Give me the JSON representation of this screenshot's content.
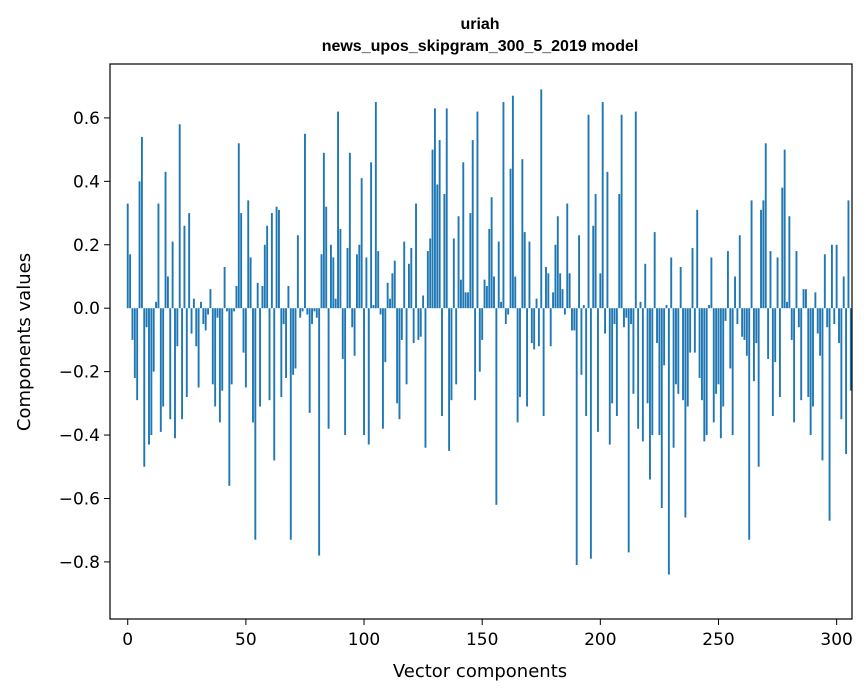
{
  "chart_data": {
    "type": "bar",
    "title": "uriah",
    "subtitle": "news_upos_skipgram_300_5_2019 model",
    "xlabel": "Vector components",
    "ylabel": "Components values",
    "xlim": [
      -7.5,
      306.5
    ],
    "ylim": [
      -0.98,
      0.77
    ],
    "x_ticks": [
      0,
      50,
      100,
      150,
      200,
      250,
      300
    ],
    "x_tick_labels": [
      "0",
      "50",
      "100",
      "150",
      "200",
      "250",
      "300"
    ],
    "y_ticks": [
      -0.8,
      -0.6,
      -0.4,
      -0.2,
      0.0,
      0.2,
      0.4,
      0.6
    ],
    "y_tick_labels": [
      "−0.8",
      "−0.6",
      "−0.4",
      "−0.2",
      "0.0",
      "0.2",
      "0.4",
      "0.6"
    ],
    "bar_color": "#1f77b4",
    "grid": false,
    "values": [
      0.33,
      0.17,
      -0.1,
      -0.22,
      -0.29,
      0.4,
      0.54,
      -0.5,
      -0.06,
      -0.43,
      -0.4,
      -0.2,
      0.02,
      0.33,
      -0.39,
      -0.31,
      0.43,
      0.1,
      -0.35,
      0.21,
      -0.41,
      -0.12,
      0.58,
      -0.35,
      0.26,
      -0.28,
      0.3,
      -0.08,
      0.03,
      -0.12,
      -0.25,
      0.02,
      -0.05,
      -0.07,
      -0.02,
      0.06,
      -0.24,
      -0.31,
      -0.03,
      -0.36,
      -0.26,
      0.13,
      -0.01,
      -0.56,
      -0.24,
      -0.01,
      0.07,
      0.52,
      0.3,
      -0.14,
      -0.25,
      0.34,
      0.16,
      -0.36,
      -0.73,
      0.08,
      -0.31,
      0.07,
      0.2,
      0.26,
      -0.29,
      0.3,
      -0.48,
      0.32,
      0.31,
      -0.28,
      -0.05,
      -0.22,
      0.07,
      -0.73,
      -0.21,
      -0.19,
      0.23,
      -0.03,
      -0.01,
      0.55,
      -0.02,
      -0.33,
      -0.05,
      -0.01,
      -0.03,
      -0.78,
      0.17,
      0.49,
      0.32,
      -0.38,
      0.2,
      0.16,
      0.03,
      0.62,
      0.25,
      -0.16,
      -0.4,
      0.19,
      0.49,
      -0.06,
      -0.15,
      0.17,
      0.2,
      0.41,
      -0.4,
      0.16,
      -0.43,
      0.46,
      0.01,
      0.65,
      0.18,
      -0.02,
      -0.38,
      -0.17,
      0.08,
      0.03,
      0.11,
      0.15,
      -0.3,
      -0.35,
      -0.1,
      0.21,
      -0.24,
      0.14,
      0.19,
      -0.11,
      0.33,
      -0.1,
      -0.09,
      0.04,
      -0.44,
      0.18,
      0.22,
      0.5,
      0.63,
      0.39,
      0.53,
      -0.34,
      0.36,
      0.63,
      -0.45,
      -0.29,
      0.22,
      -0.24,
      0.29,
      0.09,
      0.46,
      0.05,
      0.05,
      0.3,
      0.53,
      -0.29,
      0.62,
      -0.2,
      -0.1,
      0.09,
      0.07,
      0.25,
      0.35,
      0.1,
      -0.62,
      0.21,
      0.02,
      0.65,
      -0.05,
      -0.02,
      0.44,
      0.67,
      0.1,
      -0.36,
      -0.28,
      0.47,
      0.24,
      -0.31,
      0.21,
      -0.11,
      -0.13,
      0.03,
      -0.12,
      0.69,
      -0.34,
      0.13,
      0.11,
      -0.12,
      0.05,
      0.2,
      0.29,
      0.11,
      0.06,
      -0.02,
      0.33,
      0.11,
      -0.07,
      -0.07,
      -0.81,
      0.23,
      -0.21,
      0.01,
      -0.34,
      0.61,
      -0.79,
      0.26,
      0.36,
      -0.39,
      0.11,
      0.65,
      -0.08,
      0.43,
      -0.43,
      -0.3,
      -0.05,
      -0.34,
      0.36,
      0.61,
      -0.06,
      -0.03,
      -0.77,
      -0.05,
      -0.27,
      0.62,
      -0.38,
      0.02,
      -0.42,
      0.14,
      -0.3,
      -0.54,
      -0.4,
      0.24,
      -0.11,
      -0.4,
      -0.63,
      -0.18,
      0.01,
      -0.84,
      0.16,
      -0.44,
      -0.24,
      -0.27,
      0.13,
      -0.29,
      -0.66,
      -0.31,
      -0.14,
      0.19,
      -0.14,
      0.31,
      -0.22,
      -0.29,
      -0.42,
      -0.4,
      0.01,
      0.16,
      -0.36,
      -0.27,
      -0.24,
      -0.41,
      -0.31,
      -0.04,
      0.18,
      -0.19,
      -0.4,
      0.1,
      -0.05,
      0.23,
      -0.09,
      -0.1,
      -0.15,
      -0.73,
      0.34,
      -0.23,
      -0.11,
      -0.5,
      0.31,
      0.34,
      0.52,
      -0.16,
      0.18,
      -0.34,
      -0.17,
      0.16,
      -0.28,
      0.38,
      0.5,
      0.02,
      0.29,
      -0.1,
      -0.36,
      0.18,
      -0.06,
      -0.29,
      0.06,
      0.06,
      -0.28,
      -0.4,
      -0.31,
      0.05,
      -0.08,
      -0.15,
      -0.48,
      0.17,
      -0.06,
      -0.67,
      0.2,
      -0.05,
      0.2,
      -0.11,
      -0.35,
      0.1,
      -0.46,
      0.34,
      -0.26
    ]
  }
}
